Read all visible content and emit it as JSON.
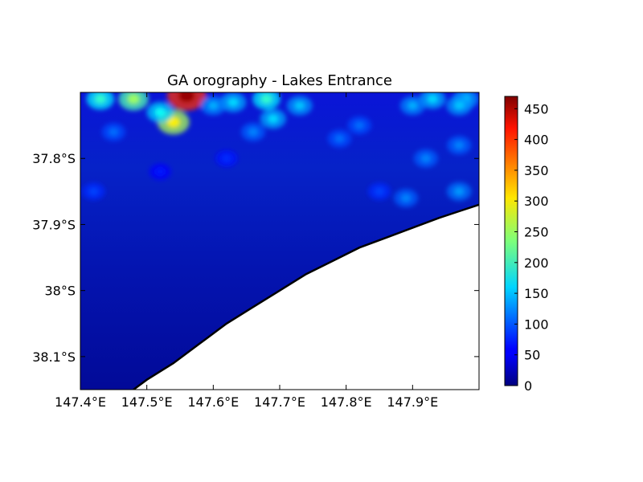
{
  "chart_data": {
    "type": "heatmap",
    "title": "GA orography - Lakes Entrance",
    "xlabel": "",
    "ylabel": "",
    "x_ticks": [
      147.4,
      147.5,
      147.6,
      147.7,
      147.8,
      147.9
    ],
    "x_tick_labels": [
      "147.4°E",
      "147.5°E",
      "147.6°E",
      "147.7°E",
      "147.8°E",
      "147.9°E"
    ],
    "y_ticks": [
      -37.8,
      -37.9,
      -38.0,
      -38.1
    ],
    "y_tick_labels": [
      "37.8°S",
      "37.9°S",
      "38°S",
      "38.1°S"
    ],
    "xlim": [
      147.4,
      148.0
    ],
    "ylim": [
      -38.15,
      -37.7
    ],
    "colormap": "jet",
    "colorbar": {
      "min": 0,
      "max": 470,
      "ticks": [
        0,
        50,
        100,
        150,
        200,
        250,
        300,
        350,
        400,
        450
      ],
      "tick_labels": [
        "0",
        "50",
        "100",
        "150",
        "200",
        "250",
        "300",
        "350",
        "400",
        "450"
      ]
    },
    "coastline": [
      [
        147.48,
        -38.15
      ],
      [
        147.5,
        -38.135
      ],
      [
        147.54,
        -38.11
      ],
      [
        147.58,
        -38.08
      ],
      [
        147.62,
        -38.05
      ],
      [
        147.66,
        -38.025
      ],
      [
        147.7,
        -38.0
      ],
      [
        147.74,
        -37.975
      ],
      [
        147.78,
        -37.955
      ],
      [
        147.82,
        -37.935
      ],
      [
        147.86,
        -37.92
      ],
      [
        147.9,
        -37.905
      ],
      [
        147.94,
        -37.89
      ],
      [
        147.97,
        -37.88
      ],
      [
        148.0,
        -37.87
      ]
    ],
    "elevation_peaks_m": [
      {
        "lon": 147.56,
        "lat": -37.705,
        "value": 460
      },
      {
        "lon": 147.54,
        "lat": -37.745,
        "value": 300
      },
      {
        "lon": 147.48,
        "lat": -37.71,
        "value": 250
      },
      {
        "lon": 147.43,
        "lat": -37.71,
        "value": 200
      },
      {
        "lon": 147.52,
        "lat": -37.73,
        "value": 180
      },
      {
        "lon": 147.68,
        "lat": -37.71,
        "value": 200
      },
      {
        "lon": 147.63,
        "lat": -37.715,
        "value": 160
      },
      {
        "lon": 147.69,
        "lat": -37.74,
        "value": 160
      },
      {
        "lon": 147.73,
        "lat": -37.72,
        "value": 150
      },
      {
        "lon": 147.93,
        "lat": -37.71,
        "value": 160
      },
      {
        "lon": 147.98,
        "lat": -37.71,
        "value": 150
      },
      {
        "lon": 147.97,
        "lat": -37.72,
        "value": 150
      },
      {
        "lon": 147.9,
        "lat": -37.72,
        "value": 140
      },
      {
        "lon": 147.97,
        "lat": -37.78,
        "value": 120
      },
      {
        "lon": 147.92,
        "lat": -37.8,
        "value": 120
      },
      {
        "lon": 147.89,
        "lat": -37.86,
        "value": 120
      },
      {
        "lon": 147.97,
        "lat": -37.85,
        "value": 130
      },
      {
        "lon": 147.79,
        "lat": -37.77,
        "value": 110
      },
      {
        "lon": 147.82,
        "lat": -37.75,
        "value": 110
      },
      {
        "lon": 147.66,
        "lat": -37.76,
        "value": 120
      },
      {
        "lon": 147.45,
        "lat": -37.76,
        "value": 110
      },
      {
        "lon": 147.6,
        "lat": -37.72,
        "value": 140
      },
      {
        "lon": 147.42,
        "lat": -37.85,
        "value": 90
      },
      {
        "lon": 147.85,
        "lat": -37.85,
        "value": 90
      },
      {
        "lon": 147.52,
        "lat": -37.82,
        "value": 70
      },
      {
        "lon": 147.62,
        "lat": -37.8,
        "value": 80
      }
    ]
  }
}
